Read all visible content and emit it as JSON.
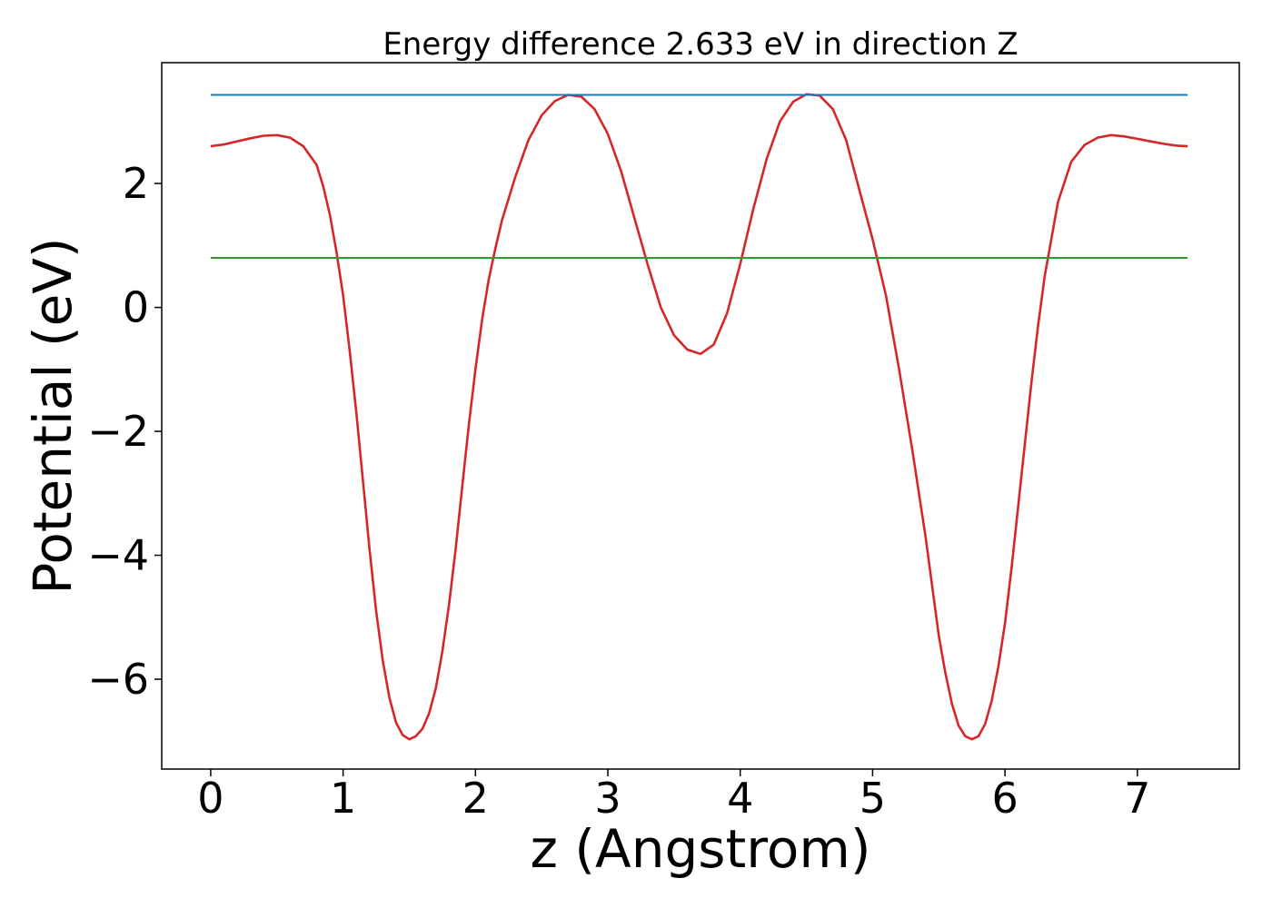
{
  "chart_data": {
    "type": "line",
    "title": "Energy difference 2.633 eV in direction Z",
    "xlabel": "z (Angstrom)",
    "ylabel": "Potential (eV)",
    "xlim": [
      -0.37,
      7.77
    ],
    "ylim": [
      -7.45,
      3.95
    ],
    "x_ticks": [
      0,
      1,
      2,
      3,
      4,
      5,
      6,
      7
    ],
    "x_tick_labels": [
      "0",
      "1",
      "2",
      "3",
      "4",
      "5",
      "6",
      "7"
    ],
    "y_ticks": [
      -6,
      -4,
      -2,
      0,
      2
    ],
    "y_tick_labels": [
      "−6",
      "−4",
      "−2",
      "0",
      "2"
    ],
    "grid": false,
    "legend": "none",
    "series": [
      {
        "color": "#d62728",
        "x": [
          0,
          0.1,
          0.2,
          0.3,
          0.4,
          0.5,
          0.6,
          0.7,
          0.8,
          0.85,
          0.9,
          0.95,
          1.0,
          1.05,
          1.1,
          1.15,
          1.2,
          1.25,
          1.3,
          1.35,
          1.4,
          1.45,
          1.5,
          1.55,
          1.6,
          1.65,
          1.7,
          1.75,
          1.8,
          1.85,
          1.9,
          1.95,
          2.0,
          2.05,
          2.1,
          2.15,
          2.2,
          2.3,
          2.4,
          2.5,
          2.6,
          2.7,
          2.8,
          2.9,
          3.0,
          3.1,
          3.2,
          3.3,
          3.4,
          3.5,
          3.6,
          3.7,
          3.8,
          3.9,
          4.0,
          4.1,
          4.2,
          4.3,
          4.4,
          4.5,
          4.6,
          4.7,
          4.8,
          4.9,
          5.0,
          5.1,
          5.2,
          5.3,
          5.4,
          5.45,
          5.5,
          5.55,
          5.6,
          5.65,
          5.7,
          5.75,
          5.8,
          5.85,
          5.9,
          5.95,
          6.0,
          6.05,
          6.1,
          6.15,
          6.2,
          6.25,
          6.3,
          6.35,
          6.4,
          6.5,
          6.6,
          6.7,
          6.8,
          6.9,
          7.0,
          7.1,
          7.2,
          7.3,
          7.38
        ],
        "y": [
          2.6,
          2.63,
          2.68,
          2.73,
          2.77,
          2.78,
          2.74,
          2.6,
          2.3,
          1.95,
          1.5,
          0.9,
          0.2,
          -0.7,
          -1.7,
          -2.8,
          -3.9,
          -4.9,
          -5.7,
          -6.3,
          -6.7,
          -6.9,
          -6.97,
          -6.92,
          -6.8,
          -6.55,
          -6.15,
          -5.55,
          -4.8,
          -3.9,
          -2.9,
          -1.9,
          -1.0,
          -0.2,
          0.45,
          0.95,
          1.4,
          2.1,
          2.7,
          3.1,
          3.33,
          3.43,
          3.4,
          3.2,
          2.8,
          2.2,
          1.45,
          0.7,
          0.0,
          -0.45,
          -0.68,
          -0.75,
          -0.6,
          -0.1,
          0.7,
          1.6,
          2.4,
          3.0,
          3.32,
          3.44,
          3.42,
          3.2,
          2.7,
          1.9,
          1.1,
          0.2,
          -1.0,
          -2.3,
          -3.7,
          -4.5,
          -5.3,
          -5.9,
          -6.4,
          -6.75,
          -6.92,
          -6.97,
          -6.92,
          -6.72,
          -6.35,
          -5.8,
          -5.1,
          -4.2,
          -3.2,
          -2.2,
          -1.2,
          -0.3,
          0.5,
          1.1,
          1.7,
          2.35,
          2.62,
          2.74,
          2.78,
          2.76,
          2.72,
          2.68,
          2.64,
          2.61,
          2.6
        ]
      },
      {
        "color": "#1f77b4",
        "x": [
          0,
          7.38
        ],
        "y": [
          3.43,
          3.43
        ]
      },
      {
        "color": "#2ca02c",
        "x": [
          0,
          7.38
        ],
        "y": [
          0.8,
          0.8
        ]
      }
    ]
  }
}
